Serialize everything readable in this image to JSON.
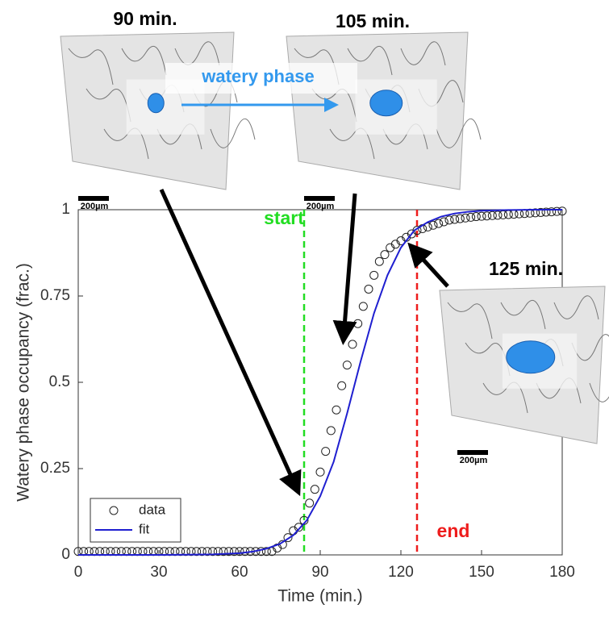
{
  "chart_data": {
    "type": "line",
    "xlabel": "Time (min.)",
    "ylabel": "Watery phase occupancy (frac.)",
    "xlim": [
      0,
      180
    ],
    "ylim": [
      0,
      1
    ],
    "xticks": [
      0,
      30,
      60,
      90,
      120,
      150,
      180
    ],
    "yticks": [
      0,
      0.25,
      0.5,
      0.75,
      1
    ],
    "legend": "lower left",
    "series": [
      {
        "name": "data",
        "marker": "circle",
        "color": "#222222",
        "x": [
          0,
          2,
          4,
          6,
          8,
          10,
          12,
          14,
          16,
          18,
          20,
          22,
          24,
          26,
          28,
          30,
          32,
          34,
          36,
          38,
          40,
          42,
          44,
          46,
          48,
          50,
          52,
          54,
          56,
          58,
          60,
          62,
          64,
          66,
          68,
          70,
          72,
          74,
          76,
          78,
          80,
          82,
          84,
          86,
          88,
          90,
          92,
          94,
          96,
          98,
          100,
          102,
          104,
          106,
          108,
          110,
          112,
          114,
          116,
          118,
          120,
          122,
          124,
          126,
          128,
          130,
          132,
          134,
          136,
          138,
          140,
          142,
          144,
          146,
          148,
          150,
          152,
          154,
          156,
          158,
          160,
          162,
          164,
          166,
          168,
          170,
          172,
          174,
          176,
          178,
          180
        ],
        "values": [
          0.01,
          0.01,
          0.01,
          0.01,
          0.01,
          0.01,
          0.01,
          0.01,
          0.01,
          0.01,
          0.01,
          0.01,
          0.01,
          0.01,
          0.01,
          0.01,
          0.01,
          0.01,
          0.01,
          0.01,
          0.01,
          0.01,
          0.01,
          0.01,
          0.01,
          0.01,
          0.01,
          0.01,
          0.01,
          0.01,
          0.01,
          0.01,
          0.01,
          0.01,
          0.01,
          0.01,
          0.01,
          0.02,
          0.03,
          0.05,
          0.07,
          0.08,
          0.1,
          0.15,
          0.19,
          0.24,
          0.3,
          0.36,
          0.42,
          0.49,
          0.55,
          0.61,
          0.67,
          0.72,
          0.77,
          0.81,
          0.85,
          0.87,
          0.89,
          0.9,
          0.91,
          0.92,
          0.93,
          0.94,
          0.945,
          0.95,
          0.955,
          0.96,
          0.965,
          0.97,
          0.972,
          0.974,
          0.976,
          0.978,
          0.98,
          0.981,
          0.982,
          0.983,
          0.984,
          0.985,
          0.986,
          0.987,
          0.988,
          0.989,
          0.99,
          0.991,
          0.992,
          0.993,
          0.994,
          0.995,
          0.996
        ]
      },
      {
        "name": "fit",
        "marker": "line",
        "color": "#1f1fd0",
        "x": [
          0,
          10,
          20,
          30,
          40,
          50,
          60,
          65,
          70,
          75,
          80,
          85,
          90,
          95,
          100,
          105,
          110,
          115,
          120,
          125,
          130,
          135,
          140,
          145,
          150,
          160,
          170,
          180
        ],
        "values": [
          0,
          0,
          0,
          0.0001,
          0.0005,
          0.0016,
          0.005,
          0.0096,
          0.018,
          0.032,
          0.057,
          0.1,
          0.17,
          0.27,
          0.41,
          0.56,
          0.7,
          0.81,
          0.89,
          0.94,
          0.964,
          0.98,
          0.989,
          0.994,
          0.997,
          0.999,
          1,
          1
        ]
      }
    ],
    "vlines": [
      {
        "x": 84,
        "label": "start",
        "color": "#22dd22"
      },
      {
        "x": 126,
        "label": "end",
        "color": "#ee1c1c"
      }
    ],
    "insets": [
      {
        "label": "90 min.",
        "scale": "200µm"
      },
      {
        "label": "105 min.",
        "scale": "200µm"
      },
      {
        "label": "125 min.",
        "scale": "200µm"
      }
    ],
    "annotation": "watery phase"
  }
}
